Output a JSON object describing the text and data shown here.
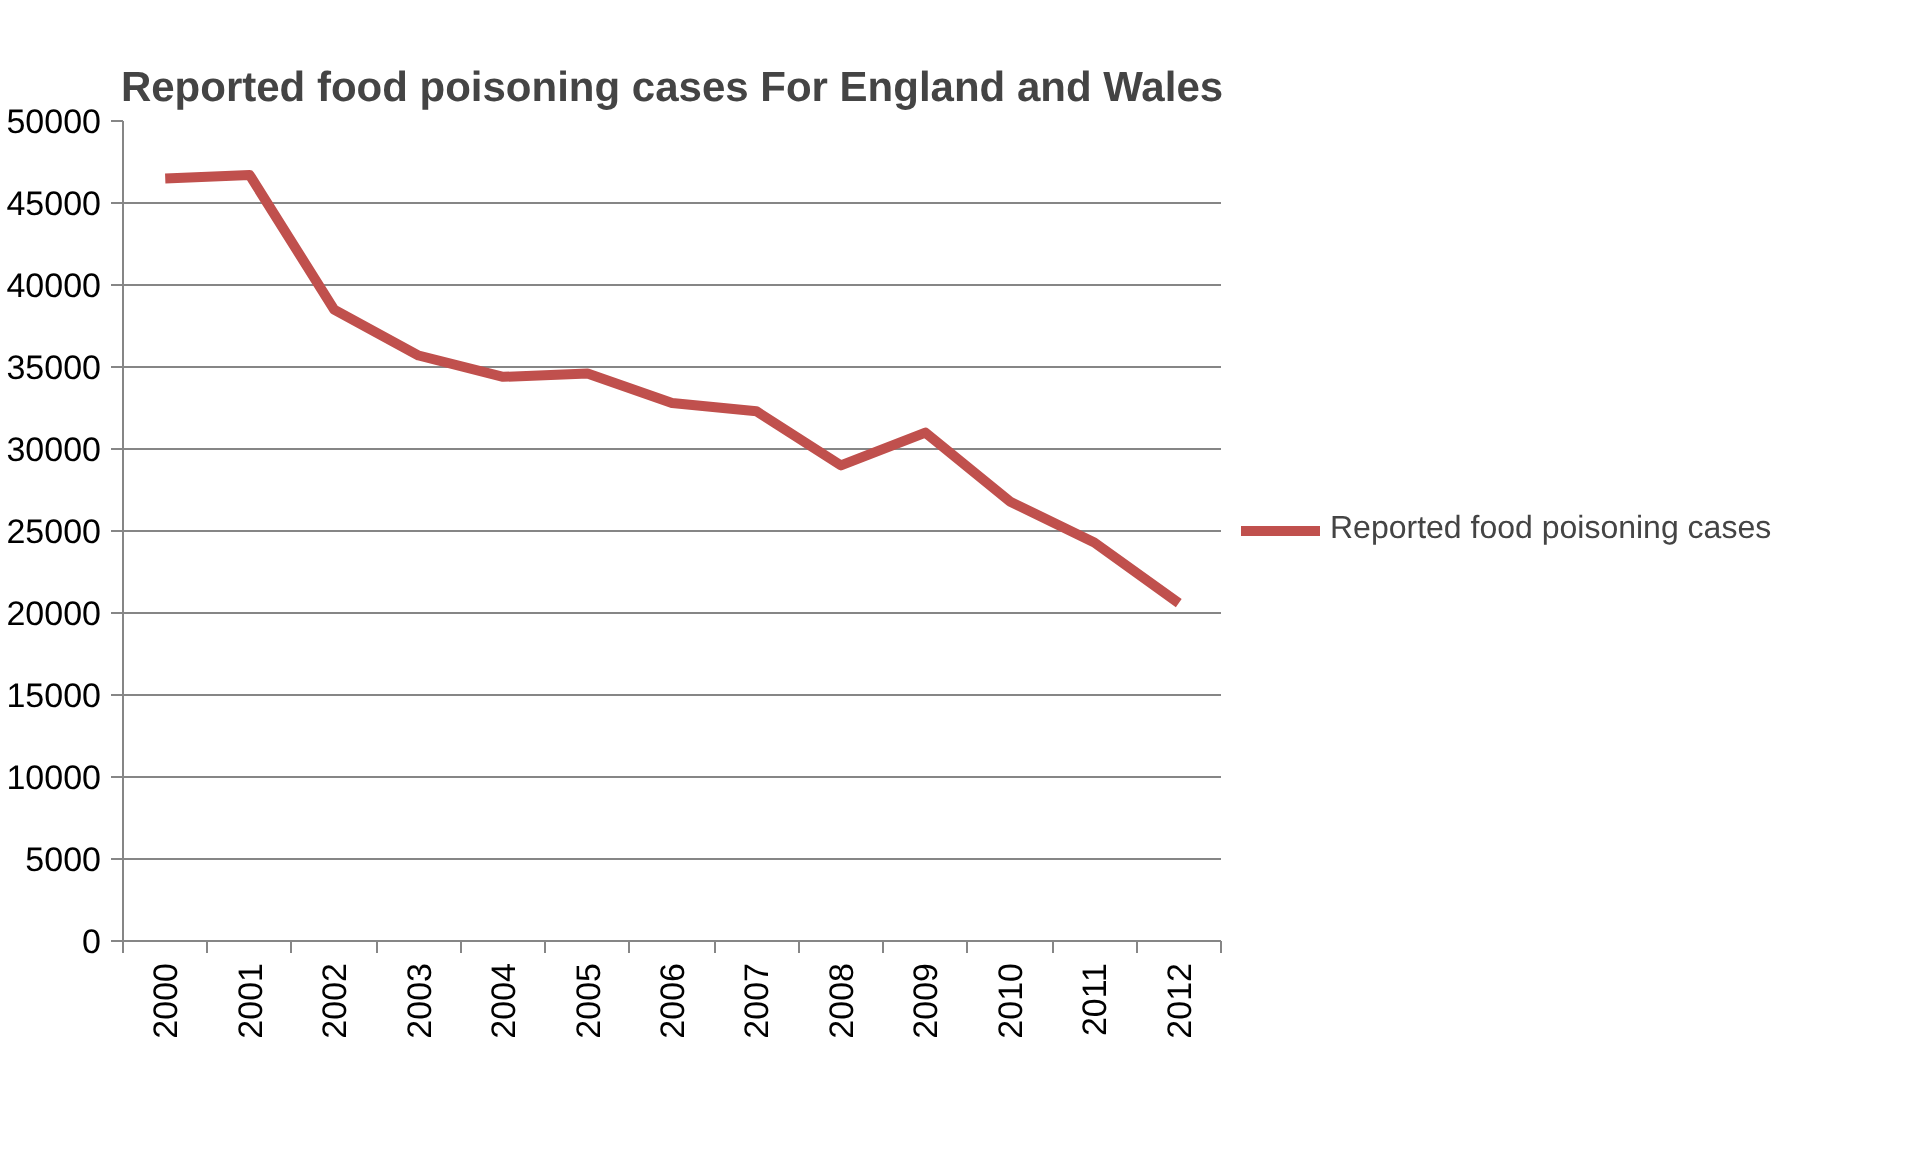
{
  "chart_data": {
    "type": "line",
    "title": "Reported food poisoning cases For England and Wales",
    "categories": [
      "2000",
      "2001",
      "2002",
      "2003",
      "2004",
      "2005",
      "2006",
      "2007",
      "2008",
      "2009",
      "2010",
      "2011",
      "2012"
    ],
    "series": [
      {
        "name": "Reported food poisoning cases",
        "color": "#c0504d",
        "values": [
          46500,
          46700,
          38500,
          35700,
          34400,
          34600,
          32800,
          32300,
          29000,
          31000,
          26800,
          24300,
          20600
        ]
      }
    ],
    "ylim": [
      0,
      50000
    ],
    "yticks": [
      0,
      5000,
      10000,
      15000,
      20000,
      25000,
      30000,
      35000,
      40000,
      45000,
      50000
    ],
    "grid": "y",
    "legend": "right",
    "marker": "none",
    "line_style": "solid"
  }
}
